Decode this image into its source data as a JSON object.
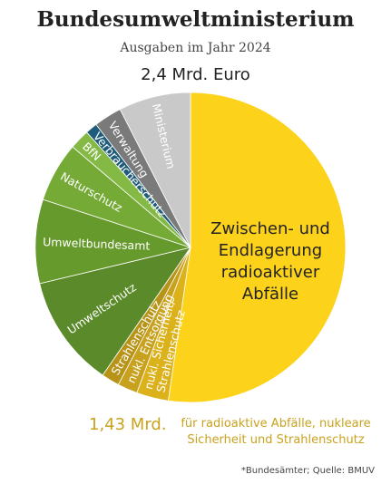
{
  "header": {
    "title": "Bundesumweltministerium",
    "subtitle": "Ausgaben im Jahr 2024",
    "total": "2,4 Mrd. Euro"
  },
  "chart_data": {
    "type": "pie",
    "unit": "Mrd. Euro",
    "total": 2.4,
    "slices": [
      {
        "label": "Zwischen- und Endlagerung radioaktiver Abfälle",
        "value": 1.255,
        "color": "#fcd21b"
      },
      {
        "label": "nukl. Sicherheit/ Strahlenschutz",
        "value": 0.08,
        "color": "#dcb21c"
      },
      {
        "label": "nukl. Entsorgung",
        "value": 0.05,
        "color": "#c8a11f"
      },
      {
        "label": "Strahlenschutz",
        "value": 0.045,
        "color": "#b79418"
      },
      {
        "label": "Umweltschutz",
        "value": 0.28,
        "color": "#5b8a2a"
      },
      {
        "label": "Umweltbundesamt",
        "value": 0.21,
        "color": "#679a2c"
      },
      {
        "label": "Naturschutz",
        "value": 0.15,
        "color": "#74aa35"
      },
      {
        "label": "BfN",
        "value": 0.05,
        "color": "#83b944"
      },
      {
        "label": "Verbraucherschutz",
        "value": 0.03,
        "color": "#1f5b7a"
      },
      {
        "label": "Verwaltung",
        "value": 0.07,
        "color": "#7a7a7a"
      },
      {
        "label": "Ministerium",
        "value": 0.18,
        "color": "#c9c9c9"
      }
    ]
  },
  "summary": {
    "amount": "1,43 Mrd.",
    "description_line1": "für radioaktive Abfälle, nukleare",
    "description_line2": "Sicherheit und Strahlenschutz"
  },
  "source": "*Bundesämter; Quelle: BMUV"
}
